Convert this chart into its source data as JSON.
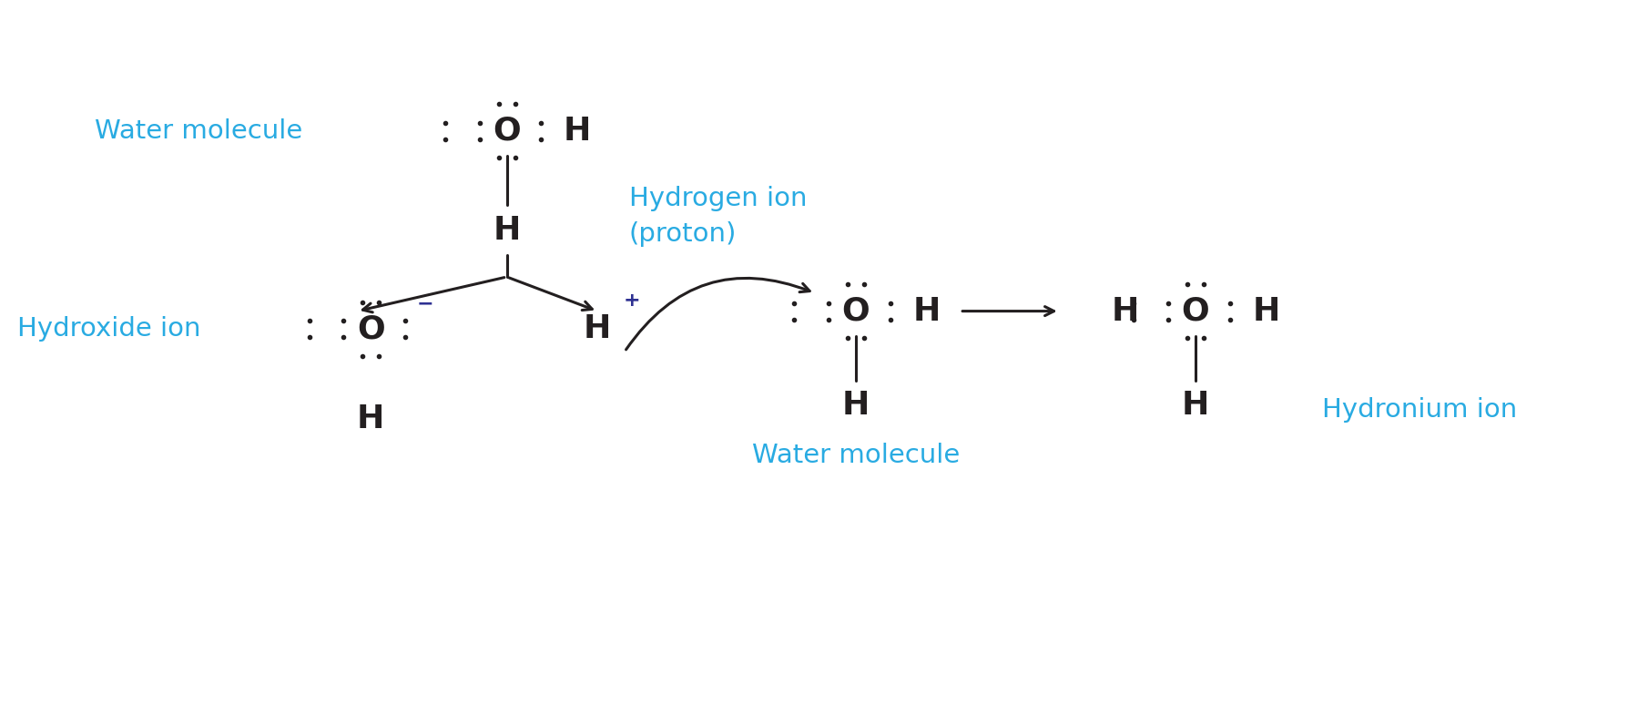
{
  "bg_color": "#ffffff",
  "cyan_color": "#29ABE2",
  "black_color": "#231F20",
  "blue_minus": "#2E3192",
  "figsize": [
    17.88,
    7.96
  ],
  "dpi": 100,
  "labels": {
    "water_molecule_top": "Water molecule",
    "hydrogen_ion": "Hydrogen ion\n(proton)",
    "hydroxide_ion": "Hydroxide ion",
    "water_molecule_bottom": "Water molecule",
    "hydronium_ion": "Hydronium ion"
  }
}
